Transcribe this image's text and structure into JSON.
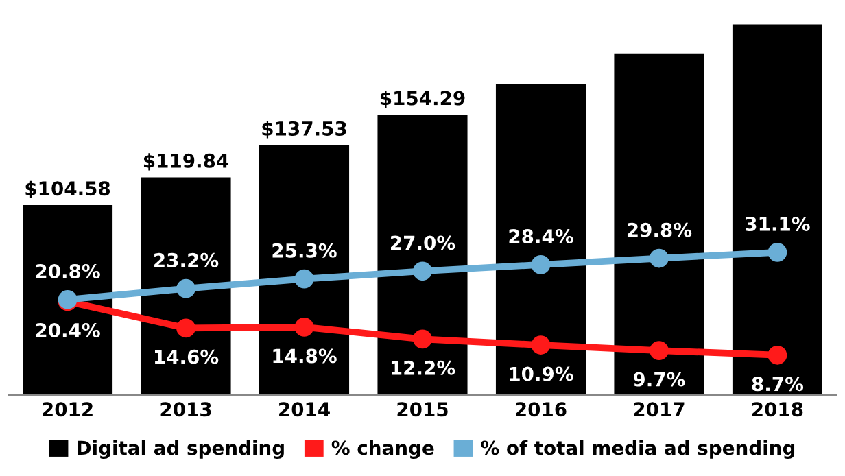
{
  "chart_data": {
    "type": "bar",
    "categories": [
      "2012",
      "2013",
      "2014",
      "2015",
      "2016",
      "2017",
      "2018"
    ],
    "series": [
      {
        "name": "Digital ad spending",
        "color": "#000000",
        "values": [
          104.58,
          119.84,
          137.53,
          154.29,
          171.1,
          187.7,
          204.0
        ],
        "value_labels": [
          "$104.58",
          "$119.84",
          "$137.53",
          "$154.29",
          null,
          null,
          null
        ]
      },
      {
        "name": "% change",
        "type": "line",
        "axis": "y2",
        "color": "#ff1a1a",
        "values": [
          20.4,
          14.6,
          14.8,
          12.2,
          10.9,
          9.7,
          8.7
        ],
        "value_labels": [
          "20.4%",
          "14.6%",
          "14.8%",
          "12.2%",
          "10.9%",
          "9.7%",
          "8.7%"
        ]
      },
      {
        "name": "% of total media ad spending",
        "type": "line",
        "axis": "y2",
        "color": "#6aaed6",
        "values": [
          20.8,
          23.2,
          25.3,
          27.0,
          28.4,
          29.8,
          31.1
        ],
        "value_labels": [
          "20.8%",
          "23.2%",
          "25.3%",
          "27.0%",
          "28.4%",
          "29.8%",
          "31.1%"
        ]
      }
    ],
    "tick_labels": "x",
    "marker": "circle",
    "legend": "bottom",
    "grid": false
  }
}
